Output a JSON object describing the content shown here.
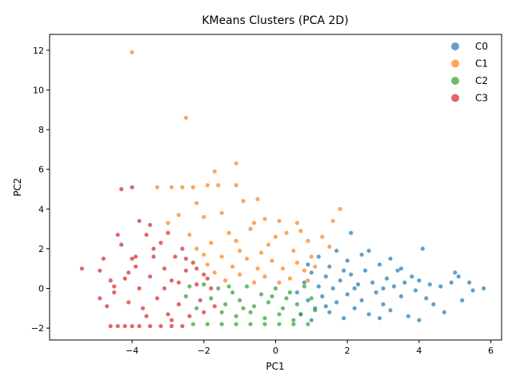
{
  "chart_data": {
    "type": "scatter",
    "title": "KMeans Clusters (PCA 2D)",
    "xlabel": "PC1",
    "ylabel": "PC2",
    "xlim": [
      -6.3,
      6.3
    ],
    "ylim": [
      -2.6,
      12.8
    ],
    "xticks": [
      -4,
      -2,
      0,
      2,
      4,
      6
    ],
    "yticks": [
      -2,
      0,
      2,
      4,
      6,
      8,
      10,
      12
    ],
    "grid": false,
    "legend_position": "top-right",
    "series": [
      {
        "name": "C0",
        "color": "#1f77b4",
        "points": [
          [
            0.6,
            -0.2
          ],
          [
            0.8,
            0.3
          ],
          [
            0.9,
            -0.6
          ],
          [
            1.0,
            0.8
          ],
          [
            1.1,
            -1.0
          ],
          [
            1.2,
            0.1
          ],
          [
            1.3,
            -0.4
          ],
          [
            1.4,
            0.6
          ],
          [
            1.5,
            -1.2
          ],
          [
            1.5,
            1.1
          ],
          [
            1.6,
            0.0
          ],
          [
            1.7,
            -0.7
          ],
          [
            1.8,
            0.4
          ],
          [
            1.9,
            -1.5
          ],
          [
            2.0,
            1.4
          ],
          [
            2.0,
            -0.3
          ],
          [
            2.1,
            0.7
          ],
          [
            2.2,
            -1.0
          ],
          [
            2.3,
            0.2
          ],
          [
            2.4,
            1.7
          ],
          [
            2.4,
            -0.6
          ],
          [
            2.5,
            0.9
          ],
          [
            2.6,
            -1.3
          ],
          [
            2.7,
            0.3
          ],
          [
            2.8,
            -0.2
          ],
          [
            2.9,
            1.2
          ],
          [
            3.0,
            -0.8
          ],
          [
            3.1,
            0.5
          ],
          [
            3.2,
            -1.1
          ],
          [
            3.3,
            0.1
          ],
          [
            3.4,
            0.9
          ],
          [
            3.5,
            -0.4
          ],
          [
            3.6,
            0.3
          ],
          [
            3.7,
            -1.4
          ],
          [
            3.8,
            0.6
          ],
          [
            3.9,
            -0.1
          ],
          [
            4.0,
            0.4
          ],
          [
            4.1,
            2.0
          ],
          [
            4.2,
            -0.5
          ],
          [
            4.3,
            0.2
          ],
          [
            4.4,
            -0.8
          ],
          [
            4.6,
            0.1
          ],
          [
            4.7,
            -1.2
          ],
          [
            4.9,
            0.3
          ],
          [
            5.0,
            0.8
          ],
          [
            5.2,
            -0.6
          ],
          [
            5.4,
            0.3
          ],
          [
            5.5,
            -0.1
          ],
          [
            5.8,
            0.0
          ],
          [
            1.2,
            1.6
          ],
          [
            1.0,
            -1.6
          ],
          [
            2.1,
            2.8
          ],
          [
            3.2,
            1.5
          ],
          [
            2.6,
            1.9
          ],
          [
            4.0,
            -1.6
          ],
          [
            3.5,
            1.0
          ],
          [
            1.7,
            1.9
          ],
          [
            2.9,
            -1.5
          ],
          [
            5.1,
            0.6
          ],
          [
            3.0,
            0.0
          ],
          [
            2.2,
            0.0
          ],
          [
            1.4,
            -0.9
          ],
          [
            0.9,
            1.2
          ],
          [
            0.7,
            -1.3
          ],
          [
            1.9,
            0.9
          ]
        ]
      },
      {
        "name": "C1",
        "color": "#ff7f0e",
        "points": [
          [
            -4.0,
            11.9
          ],
          [
            -2.5,
            8.6
          ],
          [
            -1.1,
            6.3
          ],
          [
            -1.7,
            5.9
          ],
          [
            -3.3,
            5.1
          ],
          [
            -2.9,
            5.1
          ],
          [
            -2.6,
            5.1
          ],
          [
            -2.3,
            5.1
          ],
          [
            -1.9,
            5.2
          ],
          [
            -1.6,
            5.2
          ],
          [
            -1.1,
            5.2
          ],
          [
            -0.9,
            4.4
          ],
          [
            -0.5,
            4.5
          ],
          [
            -2.2,
            4.3
          ],
          [
            -1.5,
            3.8
          ],
          [
            -2.0,
            3.6
          ],
          [
            -2.7,
            3.7
          ],
          [
            -3.0,
            3.3
          ],
          [
            -0.3,
            3.5
          ],
          [
            0.1,
            3.4
          ],
          [
            0.6,
            3.3
          ],
          [
            1.6,
            3.4
          ],
          [
            1.8,
            4.0
          ],
          [
            1.3,
            2.6
          ],
          [
            -1.3,
            2.8
          ],
          [
            -0.7,
            3.0
          ],
          [
            0.3,
            2.8
          ],
          [
            0.9,
            2.4
          ],
          [
            -1.8,
            2.3
          ],
          [
            -2.2,
            2.0
          ],
          [
            -1.0,
            1.9
          ],
          [
            -0.2,
            2.2
          ],
          [
            0.5,
            1.9
          ],
          [
            1.0,
            1.6
          ],
          [
            -1.5,
            1.6
          ],
          [
            -0.8,
            1.5
          ],
          [
            -0.1,
            1.4
          ],
          [
            0.6,
            1.3
          ],
          [
            -1.9,
            1.2
          ],
          [
            -1.2,
            1.1
          ],
          [
            -0.5,
            1.0
          ],
          [
            0.2,
            1.0
          ],
          [
            0.8,
            0.9
          ],
          [
            -1.7,
            0.8
          ],
          [
            -1.0,
            0.7
          ],
          [
            -0.3,
            0.6
          ],
          [
            0.4,
            0.5
          ],
          [
            0.9,
            0.4
          ],
          [
            -1.4,
            0.4
          ],
          [
            -0.6,
            0.3
          ],
          [
            0.1,
            0.3
          ],
          [
            -2.0,
            1.7
          ],
          [
            -0.4,
            1.8
          ],
          [
            1.1,
            1.1
          ],
          [
            -1.1,
            2.4
          ],
          [
            0.0,
            2.6
          ],
          [
            0.7,
            2.9
          ],
          [
            -2.4,
            2.7
          ],
          [
            -0.6,
            3.3
          ],
          [
            1.5,
            2.1
          ]
        ]
      },
      {
        "name": "C2",
        "color": "#2ca02c",
        "points": [
          [
            -2.0,
            0.2
          ],
          [
            -1.6,
            0.0
          ],
          [
            -1.2,
            -0.2
          ],
          [
            -0.8,
            0.1
          ],
          [
            -0.4,
            -0.3
          ],
          [
            0.0,
            0.0
          ],
          [
            0.4,
            -0.2
          ],
          [
            0.8,
            0.1
          ],
          [
            1.0,
            -0.5
          ],
          [
            -1.8,
            -0.5
          ],
          [
            -1.4,
            -0.8
          ],
          [
            -1.0,
            -0.6
          ],
          [
            -0.6,
            -0.9
          ],
          [
            -0.2,
            -0.7
          ],
          [
            0.2,
            -1.0
          ],
          [
            0.6,
            -0.8
          ],
          [
            -1.5,
            -1.2
          ],
          [
            -1.1,
            -1.4
          ],
          [
            -0.7,
            -1.2
          ],
          [
            -0.3,
            -1.5
          ],
          [
            0.1,
            -1.3
          ],
          [
            0.5,
            -1.6
          ],
          [
            -2.3,
            -1.8
          ],
          [
            -1.9,
            -1.8
          ],
          [
            -1.5,
            -1.8
          ],
          [
            -1.1,
            -1.8
          ],
          [
            -0.7,
            -1.8
          ],
          [
            -0.3,
            -1.8
          ],
          [
            0.1,
            -1.8
          ],
          [
            0.5,
            -1.8
          ],
          [
            0.9,
            -1.8
          ],
          [
            -2.5,
            -0.4
          ],
          [
            -2.2,
            -1.0
          ],
          [
            -2.4,
            0.1
          ],
          [
            1.1,
            -1.1
          ],
          [
            -0.1,
            -0.4
          ],
          [
            -0.9,
            -1.0
          ],
          [
            0.3,
            -0.5
          ],
          [
            -1.3,
            0.1
          ],
          [
            0.7,
            -1.3
          ]
        ]
      },
      {
        "name": "C3",
        "color": "#d62728",
        "points": [
          [
            -5.4,
            1.0
          ],
          [
            -4.9,
            0.9
          ],
          [
            -4.8,
            1.5
          ],
          [
            -4.9,
            -0.5
          ],
          [
            -4.7,
            -0.9
          ],
          [
            -4.6,
            0.4
          ],
          [
            -4.5,
            -0.2
          ],
          [
            -4.4,
            2.7
          ],
          [
            -4.3,
            2.2
          ],
          [
            -4.3,
            5.0
          ],
          [
            -4.0,
            5.1
          ],
          [
            -4.2,
            0.5
          ],
          [
            -4.1,
            -0.7
          ],
          [
            -4.0,
            1.5
          ],
          [
            -3.9,
            1.1
          ],
          [
            -3.8,
            3.4
          ],
          [
            -3.8,
            0.0
          ],
          [
            -3.7,
            -1.0
          ],
          [
            -3.6,
            2.7
          ],
          [
            -3.5,
            3.2
          ],
          [
            -3.5,
            0.6
          ],
          [
            -3.4,
            1.6
          ],
          [
            -3.3,
            -0.5
          ],
          [
            -3.2,
            2.3
          ],
          [
            -3.1,
            1.0
          ],
          [
            -3.0,
            -1.3
          ],
          [
            -3.0,
            2.8
          ],
          [
            -2.9,
            0.4
          ],
          [
            -2.8,
            1.6
          ],
          [
            -2.7,
            -0.8
          ],
          [
            -2.6,
            2.0
          ],
          [
            -2.5,
            0.9
          ],
          [
            -2.4,
            -1.4
          ],
          [
            -2.3,
            1.3
          ],
          [
            -2.2,
            0.2
          ],
          [
            -2.1,
            -0.6
          ],
          [
            -2.0,
            0.7
          ],
          [
            -2.0,
            -1.2
          ],
          [
            -1.8,
            0.0
          ],
          [
            -1.7,
            -0.9
          ],
          [
            -4.6,
            -1.9
          ],
          [
            -4.4,
            -1.9
          ],
          [
            -4.2,
            -1.9
          ],
          [
            -4.0,
            -1.9
          ],
          [
            -3.8,
            -1.9
          ],
          [
            -3.5,
            -1.9
          ],
          [
            -3.2,
            -1.9
          ],
          [
            -2.9,
            -1.9
          ],
          [
            -2.6,
            -1.9
          ],
          [
            -4.1,
            0.8
          ],
          [
            -3.6,
            -1.4
          ],
          [
            -3.1,
            0.0
          ],
          [
            -2.5,
            1.5
          ],
          [
            -2.2,
            1.0
          ],
          [
            -3.4,
            2.0
          ],
          [
            -2.9,
            -1.6
          ],
          [
            -3.9,
            1.6
          ],
          [
            -4.5,
            0.1
          ],
          [
            -2.7,
            0.3
          ],
          [
            -1.9,
            0.5
          ]
        ]
      }
    ]
  }
}
